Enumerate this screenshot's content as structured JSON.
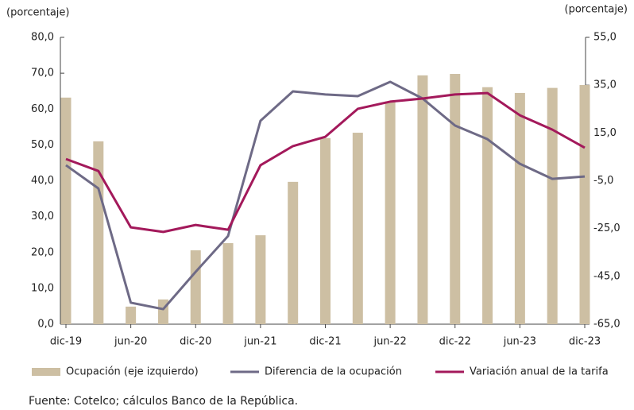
{
  "chart_data": {
    "type": "bar-line",
    "y_label": "(porcentaje)",
    "y2_label": "(porcentaje)",
    "categories": [
      "dic-19",
      null,
      "jun-20",
      null,
      "dic-20",
      null,
      "jun-21",
      null,
      "dic-21",
      null,
      "jun-22",
      null,
      "dic-22",
      null,
      "jun-23",
      null,
      "dic-23"
    ],
    "series": [
      {
        "name": "Ocupación (eje izquierdo)",
        "kind": "bar",
        "color": "#cdbfa3",
        "axis": "y",
        "values": [
          63.2,
          51.0,
          4.9,
          6.9,
          20.6,
          22.6,
          24.8,
          39.7,
          51.9,
          53.4,
          62.1,
          69.4,
          69.8,
          66.1,
          64.5,
          65.9,
          66.7
        ]
      },
      {
        "name": "Diferencia de la ocupación",
        "kind": "line",
        "color": "#6e6a86",
        "axis": "y2",
        "values": [
          1.5,
          -8.2,
          -56.0,
          -58.7,
          -43.1,
          -28.1,
          20.1,
          32.4,
          31.1,
          30.4,
          36.4,
          29.4,
          18.1,
          12.4,
          2.1,
          -4.2,
          -3.2
        ]
      },
      {
        "name": "Variación anual de la tarifa",
        "kind": "line",
        "color": "#a3195b",
        "axis": "y2",
        "values": [
          4.1,
          -0.9,
          -24.5,
          -26.4,
          -23.5,
          -25.5,
          1.5,
          9.5,
          13.4,
          25.1,
          28.1,
          29.4,
          31.1,
          31.7,
          22.4,
          16.4,
          8.8
        ]
      }
    ],
    "ylim": [
      0,
      80
    ],
    "yticks": [
      {
        "value": 0,
        "label": "0,0"
      },
      {
        "value": 10,
        "label": "10,0"
      },
      {
        "value": 20,
        "label": "20,0"
      },
      {
        "value": 30,
        "label": "30,0"
      },
      {
        "value": 40,
        "label": "40,0"
      },
      {
        "value": 50,
        "label": "50,0"
      },
      {
        "value": 60,
        "label": "60,0"
      },
      {
        "value": 70,
        "label": "70,0"
      },
      {
        "value": 80,
        "label": "80,0"
      }
    ],
    "y2lim": [
      -65,
      55
    ],
    "y2ticks": [
      {
        "value": -65,
        "label": "-65,0"
      },
      {
        "value": -45,
        "label": "-45,0"
      },
      {
        "value": -25,
        "label": "-25,0"
      },
      {
        "value": -5,
        "label": "-5,0"
      },
      {
        "value": 15,
        "label": "15,0"
      },
      {
        "value": 35,
        "label": "35,0"
      },
      {
        "value": 55,
        "label": "55,0"
      }
    ],
    "grid": false,
    "source": "Fuente: Cotelco; cálculos Banco de la República."
  }
}
